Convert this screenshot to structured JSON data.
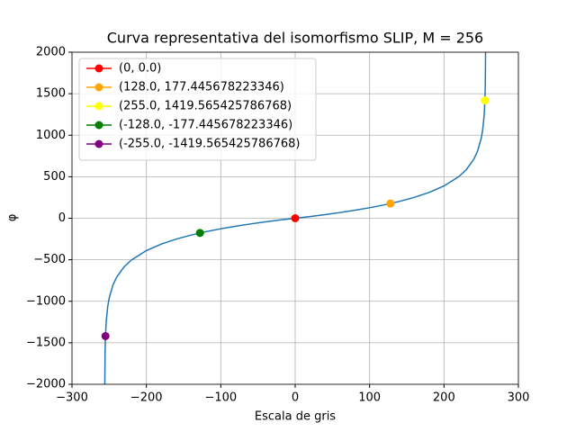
{
  "chart_data": {
    "type": "line",
    "title": "Curva representativa del isomorfismo SLIP, M = 256",
    "xlabel": "Escala de gris",
    "ylabel": "φ",
    "xlim": [
      -300,
      300
    ],
    "ylim": [
      -2000,
      2000
    ],
    "xticks": [
      {
        "value": -300,
        "label": "−300"
      },
      {
        "value": -200,
        "label": "−200"
      },
      {
        "value": -100,
        "label": "−100"
      },
      0,
      100,
      200,
      300
    ],
    "yticks": [
      {
        "value": -2000,
        "label": "−2000"
      },
      {
        "value": -1500,
        "label": "−1500"
      },
      {
        "value": -1000,
        "label": "−1000"
      },
      {
        "value": -500,
        "label": "−500"
      },
      0,
      500,
      1000,
      1500,
      2000
    ],
    "grid": true,
    "legend": "upper left",
    "series": [
      {
        "color": "#1f77b4",
        "x": [
          -255.9,
          -255.5,
          -255,
          -254,
          -252,
          -250,
          -245,
          -240,
          -230,
          -220,
          -200,
          -180,
          -160,
          -140,
          -120,
          -100,
          -80,
          -60,
          -40,
          -20,
          0,
          20,
          40,
          60,
          80,
          100,
          120,
          140,
          160,
          180,
          200,
          220,
          230,
          240,
          245,
          250,
          252,
          254,
          255,
          255.5,
          255.9
        ],
        "values": [
          -2009,
          -1597,
          -1419.6,
          -1242.1,
          -1064.7,
          -960.9,
          -805.7,
          -709.8,
          -585.5,
          -502.2,
          -389.1,
          -310.9,
          -251.1,
          -202.6,
          -161.9,
          -126.8,
          -95.9,
          -68.4,
          -43.5,
          -20.8,
          0,
          20.8,
          43.5,
          68.4,
          95.9,
          126.8,
          161.9,
          202.6,
          251.1,
          310.9,
          389.1,
          502.2,
          585.5,
          709.8,
          805.7,
          960.9,
          1064.7,
          1242.1,
          1419.6,
          1597,
          2009
        ]
      },
      {
        "name": "(0, 0.0)",
        "color": "#ff0000",
        "x": [
          0
        ],
        "values": [
          0.0
        ]
      },
      {
        "name": "(128.0, 177.445678223346)",
        "color": "#ffa500",
        "x": [
          128.0
        ],
        "values": [
          177.445678223346
        ]
      },
      {
        "name": "(255.0, 1419.565425786768)",
        "color": "#ffff00",
        "x": [
          255.0
        ],
        "values": [
          1419.565425786768
        ]
      },
      {
        "name": "(-128.0, -177.445678223346)",
        "color": "#008000",
        "x": [
          -128.0
        ],
        "values": [
          -177.445678223346
        ]
      },
      {
        "name": "(-255.0, -1419.565425786768)",
        "color": "#800080",
        "x": [
          -255.0
        ],
        "values": [
          -1419.565425786768
        ]
      }
    ]
  }
}
